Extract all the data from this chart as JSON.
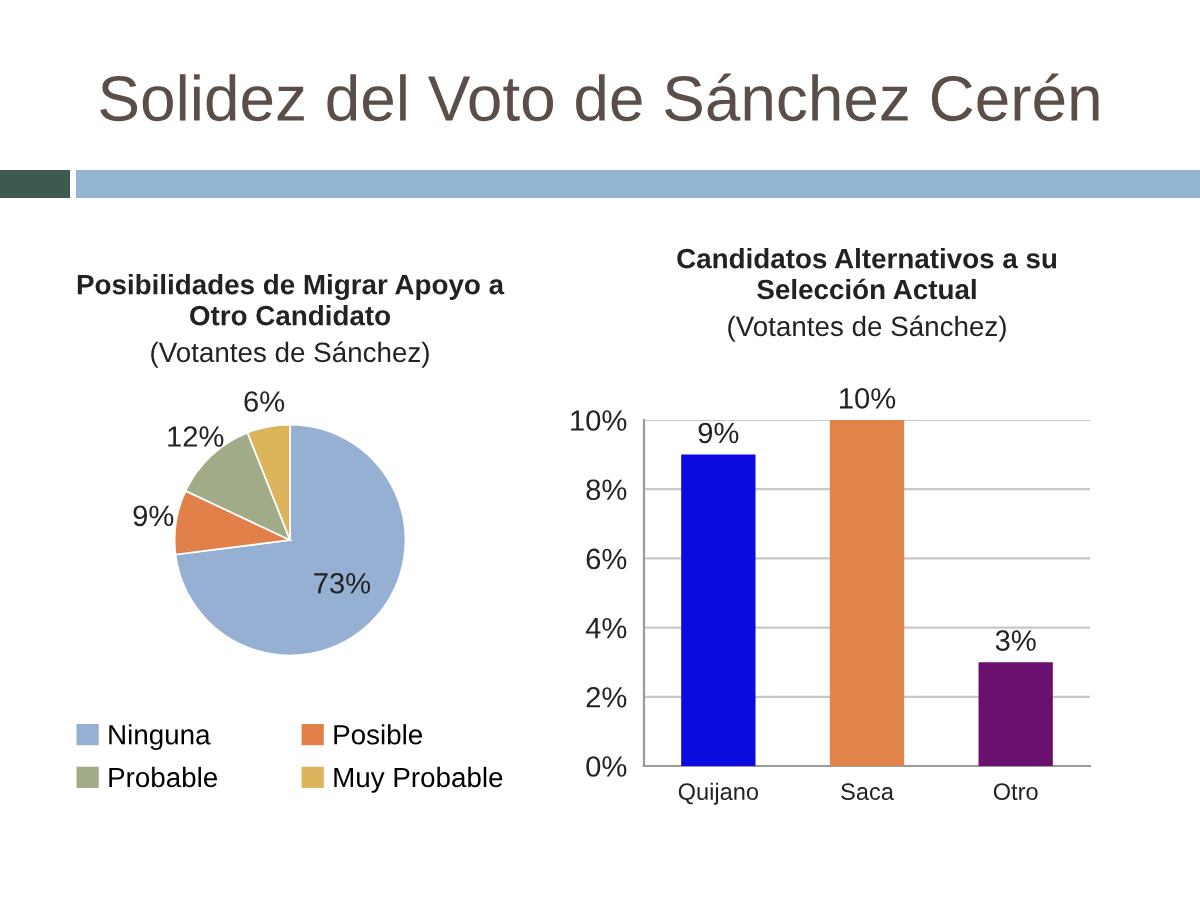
{
  "chart_data": [
    {
      "type": "other",
      "title": "Solidez del Voto de Sánchez Cerén"
    },
    {
      "type": "pie",
      "title": "Posibilidades de Migrar Apoyo a Otro Candidato",
      "subtitle": "(Votantes de Sánchez)",
      "categories": [
        "Ninguna",
        "Posible",
        "Probable",
        "Muy Probable"
      ],
      "values": [
        73,
        9,
        12,
        6
      ],
      "colors": [
        "#95b0d2",
        "#e2804a",
        "#a2ab88",
        "#dcb45c"
      ],
      "value_labels": [
        "73%",
        "9%",
        "12%",
        "6%"
      ],
      "legend": "bottom"
    },
    {
      "type": "bar",
      "title": "Candidatos Alternativos a su Selección Actual",
      "subtitle": "(Votantes de Sánchez)",
      "categories": [
        "Quijano",
        "Saca",
        "Otro"
      ],
      "values": [
        9,
        10,
        3
      ],
      "colors": [
        "#0b0be0",
        "#e0844a",
        "#6c1070"
      ],
      "value_labels": [
        "9%",
        "10%",
        "3%"
      ],
      "ylim": [
        0,
        10
      ],
      "yticks": [
        {
          "value": 0,
          "label": "0%"
        },
        {
          "value": 2,
          "label": "2%"
        },
        {
          "value": 4,
          "label": "4%"
        },
        {
          "value": 6,
          "label": "6%"
        },
        {
          "value": 8,
          "label": "8%"
        },
        {
          "value": 10,
          "label": "10%"
        }
      ],
      "grid": "y"
    }
  ]
}
